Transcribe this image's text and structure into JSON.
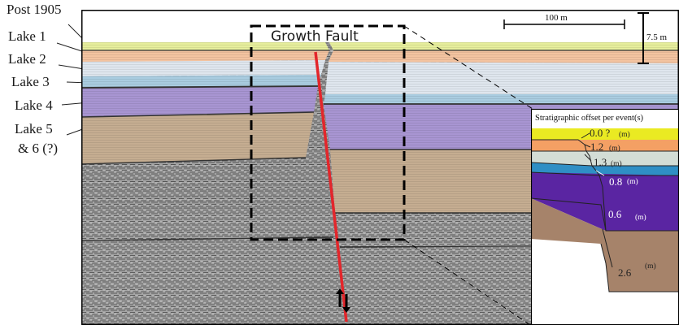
{
  "layer_labels": [
    {
      "name": "post-1905",
      "text": "Post 1905"
    },
    {
      "name": "lake-1",
      "text": "Lake 1"
    },
    {
      "name": "lake-2",
      "text": "Lake 2"
    },
    {
      "name": "lake-3",
      "text": "Lake 3"
    },
    {
      "name": "lake-4",
      "text": "Lake 4"
    },
    {
      "name": "lake-5-line1",
      "text": "Lake 5"
    },
    {
      "name": "lake-5-line2",
      "text": "& 6 (?)"
    }
  ],
  "fault_label": "Growth Fault",
  "scale": {
    "horizontal": "100 m",
    "vertical": "7.5 m"
  },
  "inset": {
    "title": "Stratigraphic offset per event(s)",
    "offsets": [
      {
        "value": "0.0 ?",
        "unit": "(m)"
      },
      {
        "value": "1.2",
        "unit": "(m)"
      },
      {
        "value": "1.3",
        "unit": "(m)"
      },
      {
        "value": "0.8",
        "unit": "(m)"
      },
      {
        "value": "0.6",
        "unit": "(m)"
      },
      {
        "value": "2.6",
        "unit": "(m)"
      }
    ]
  },
  "colors": {
    "post1905": "#e6ee9c",
    "lake1": "#f3c3a0",
    "lake2": "#dfe6ee",
    "lake3": "#a9cce0",
    "lake4": "#a895d2",
    "lake5": "#c5ad91",
    "fault": "#e3262b",
    "inset_yellow": "#eaea22",
    "inset_orange": "#f4a064",
    "inset_gray": "#d3ddd5",
    "inset_blue": "#2f8fc5",
    "inset_purple": "#5a25a2",
    "inset_brown": "#a6836a"
  }
}
